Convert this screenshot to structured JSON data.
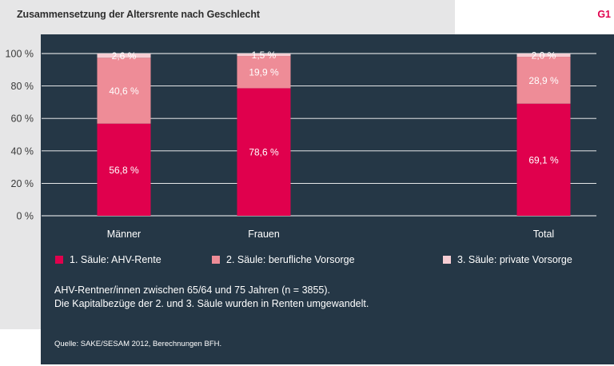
{
  "header": {
    "title": "Zusammensetzung der Altersrente nach Geschlecht",
    "code": "G1"
  },
  "chart_data": {
    "type": "bar",
    "stacked": true,
    "categories": [
      "Männer",
      "Frauen",
      "Total"
    ],
    "series": [
      {
        "name": "1. Säule: AHV-Rente",
        "values": [
          56.8,
          78.6,
          69.1
        ],
        "color": "#e0004d",
        "labels": [
          "56,8 %",
          "78,6 %",
          "69,1 %"
        ]
      },
      {
        "name": "2. Säule: berufliche Vorsorge",
        "values": [
          40.6,
          19.9,
          28.9
        ],
        "color": "#ee8c97",
        "labels": [
          "40,6 %",
          "19,9 %",
          "28,9 %"
        ]
      },
      {
        "name": "3. Säule: private Vorsorge",
        "values": [
          2.6,
          1.5,
          2.0
        ],
        "color": "#f6cdd3",
        "labels": [
          "2,6 %",
          "1,5 %",
          "2,0 %"
        ]
      }
    ],
    "ylim": [
      0,
      100
    ],
    "yticks": [
      "0 %",
      "20 %",
      "40 %",
      "60 %",
      "80 %",
      "100 %"
    ],
    "grid": true,
    "legend_position": "bottom"
  },
  "note": {
    "line1": "AHV-Rentner/innen zwischen 65/64 und 75 Jahren (n = 3855).",
    "line2": "Die Kapitalbezüge der 2. und 3. Säule wurden in Renten umgewandelt."
  },
  "source": "Quelle: SAKE/SESAM 2012, Berechnungen BFH."
}
